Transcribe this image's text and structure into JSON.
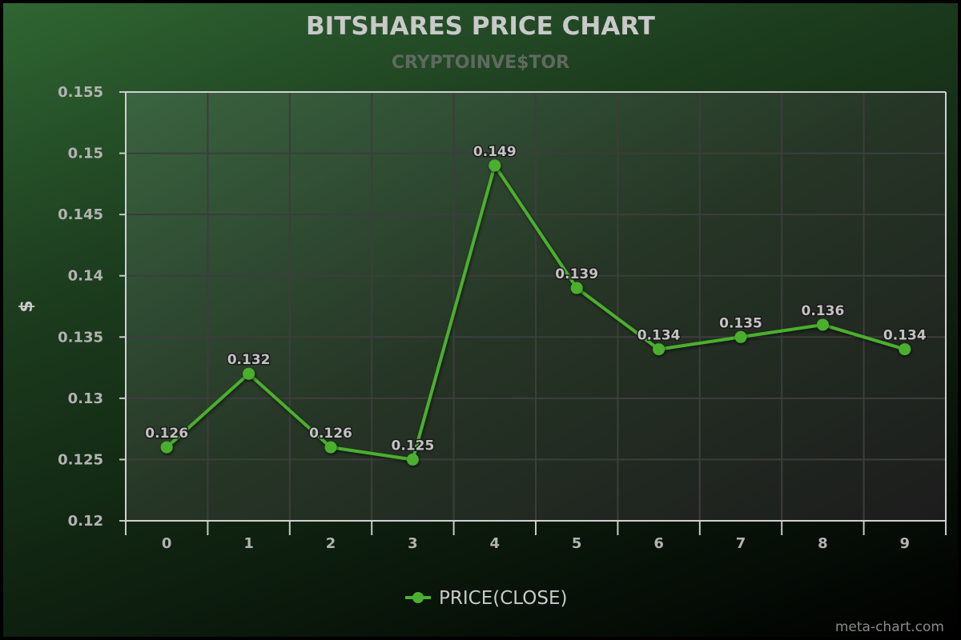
{
  "chart_data": {
    "type": "line",
    "title": "BITSHARES PRICE CHART",
    "subtitle": "CRYPTOINVE$TOR",
    "xlabel": "",
    "ylabel": "$",
    "categories": [
      "0",
      "1",
      "2",
      "3",
      "4",
      "5",
      "6",
      "7",
      "8",
      "9"
    ],
    "series": [
      {
        "name": "PRICE(CLOSE)",
        "color": "#4caf2f",
        "values": [
          0.126,
          0.132,
          0.126,
          0.125,
          0.149,
          0.139,
          0.134,
          0.135,
          0.136,
          0.134
        ],
        "labels": [
          "0.126",
          "0.132",
          "0.126",
          "0.125",
          "0.149",
          "0.139",
          "0.134",
          "0.135",
          "0.136",
          "0.134"
        ]
      }
    ],
    "ylim": [
      0.12,
      0.155
    ],
    "yticks": [
      "0.155",
      "0.15",
      "0.145",
      "0.14",
      "0.135",
      "0.13",
      "0.125",
      "0.12"
    ],
    "grid": true,
    "legend_position": "bottom-center"
  },
  "credit": "meta-chart.com"
}
